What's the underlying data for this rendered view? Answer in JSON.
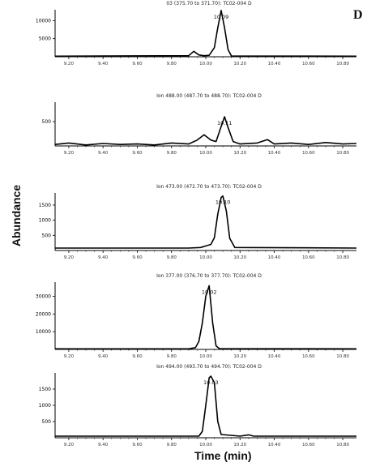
{
  "figure": {
    "panel_letter": "D",
    "ylabel": "Abundance",
    "xlabel": "Time (min)"
  },
  "chart_data": [
    {
      "type": "line",
      "title": "03 (375.70 to 371.70): TC02-004 D",
      "x_ticks": [
        "9.20",
        "9.40",
        "9.60",
        "9.80",
        "10.00",
        "10.20",
        "10.40",
        "10.60",
        "10.80"
      ],
      "y_ticks": [
        5000,
        10000
      ],
      "ylim": [
        0,
        13000
      ],
      "xlim": [
        9.12,
        10.88
      ],
      "peak_label": "10.09",
      "series": [
        {
          "x": [
            9.12,
            9.9,
            9.93,
            9.96,
            9.99,
            10.02,
            10.05,
            10.07,
            10.09,
            10.11,
            10.13,
            10.15,
            10.88
          ],
          "y": [
            150,
            300,
            1500,
            500,
            300,
            400,
            2500,
            8000,
            12800,
            8000,
            2000,
            200,
            150
          ]
        }
      ]
    },
    {
      "type": "line",
      "title": "Ion 488.00 (487.70 to 488.70): TC02-004 D",
      "x_ticks": [
        "9.20",
        "9.40",
        "9.60",
        "9.80",
        "10.00",
        "10.20",
        "10.40",
        "10.60",
        "10.80"
      ],
      "y_ticks": [
        500
      ],
      "ylim": [
        0,
        900
      ],
      "xlim": [
        9.12,
        10.88
      ],
      "peak_label": "10.11",
      "series": [
        {
          "x": [
            9.12,
            9.2,
            9.3,
            9.4,
            9.5,
            9.6,
            9.7,
            9.8,
            9.9,
            9.95,
            9.99,
            10.03,
            10.06,
            10.09,
            10.11,
            10.13,
            10.16,
            10.2,
            10.3,
            10.36,
            10.4,
            10.5,
            10.6,
            10.7,
            10.8,
            10.88
          ],
          "y": [
            30,
            60,
            20,
            50,
            30,
            40,
            20,
            60,
            40,
            120,
            230,
            120,
            90,
            400,
            600,
            380,
            90,
            40,
            60,
            130,
            40,
            60,
            30,
            70,
            40,
            50
          ]
        }
      ]
    },
    {
      "type": "line",
      "title": "Ion 473.00 (472.70 to 473.70): TC02-004 D",
      "x_ticks": [
        "9.20",
        "9.40",
        "9.60",
        "9.80",
        "10.00",
        "10.20",
        "10.40",
        "10.60",
        "10.80"
      ],
      "y_ticks": [
        500,
        1000,
        1500
      ],
      "ylim": [
        0,
        1900
      ],
      "xlim": [
        9.12,
        10.88
      ],
      "peak_label": "10.10",
      "series": [
        {
          "x": [
            9.12,
            9.9,
            9.97,
            10.0,
            10.03,
            10.05,
            10.07,
            10.09,
            10.1,
            10.12,
            10.14,
            10.17,
            10.88
          ],
          "y": [
            80,
            80,
            100,
            150,
            200,
            420,
            1200,
            1750,
            1800,
            1300,
            400,
            100,
            80
          ]
        }
      ]
    },
    {
      "type": "line",
      "title": "Ion 377.00 (376.70 to 377.70): TC02-004 D",
      "x_ticks": [
        "9.20",
        "9.40",
        "9.60",
        "9.80",
        "10.00",
        "10.20",
        "10.40",
        "10.60",
        "10.80"
      ],
      "y_ticks": [
        10000,
        20000,
        30000
      ],
      "ylim": [
        0,
        38000
      ],
      "xlim": [
        9.12,
        10.88
      ],
      "peak_label": "10.02",
      "series": [
        {
          "x": [
            9.12,
            9.9,
            9.94,
            9.96,
            9.98,
            10.0,
            10.02,
            10.04,
            10.06,
            10.08,
            10.88
          ],
          "y": [
            300,
            300,
            1000,
            4500,
            15000,
            30000,
            36000,
            15000,
            2000,
            400,
            300
          ]
        }
      ]
    },
    {
      "type": "line",
      "title": "Ion 494.00 (493.70 to 494.70): TC02-004 D",
      "x_ticks": [
        "9.20",
        "9.40",
        "9.60",
        "9.80",
        "10.00",
        "10.20",
        "10.40",
        "10.60",
        "10.80"
      ],
      "y_ticks": [
        500,
        1000,
        1500
      ],
      "ylim": [
        0,
        2000
      ],
      "xlim": [
        9.12,
        10.88
      ],
      "peak_label": "10.03",
      "series": [
        {
          "x": [
            9.12,
            9.96,
            9.98,
            10.0,
            10.02,
            10.03,
            10.05,
            10.07,
            10.09,
            10.2,
            10.25,
            10.28,
            10.88
          ],
          "y": [
            50,
            50,
            200,
            1000,
            1850,
            1900,
            1700,
            500,
            100,
            50,
            90,
            50,
            50
          ]
        }
      ]
    }
  ]
}
